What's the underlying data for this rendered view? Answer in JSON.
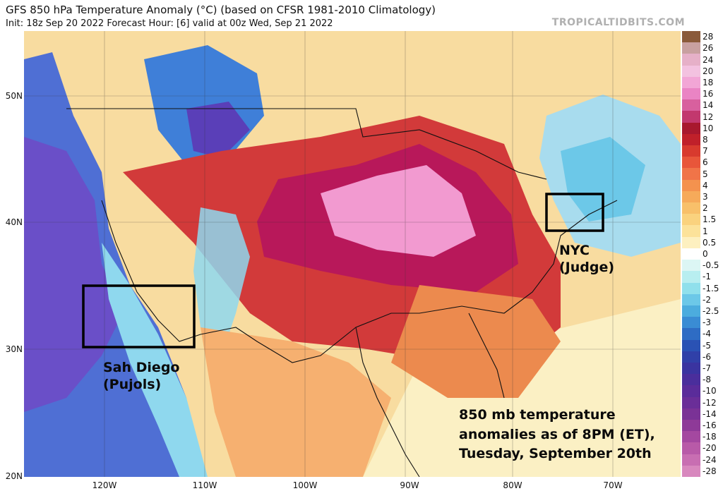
{
  "header": {
    "title": "GFS 850 hPa Temperature Anomaly (°C) (based on CFSR 1981-2010 Climatology)",
    "subtitle": "Init: 18z Sep 20 2022   Forecast Hour: [6]   valid at 00z Wed, Sep 21 2022",
    "brand": "TROPICALTIDBITS.COM"
  },
  "map": {
    "lat_labels": [
      "50N",
      "40N",
      "30N",
      "20N"
    ],
    "lon_labels": [
      "120W",
      "110W",
      "100W",
      "90W",
      "80W",
      "70W"
    ],
    "annotations": {
      "nyc_line1": "NYC",
      "nyc_line2": "(Judge)",
      "sd_line1": "Sah Diego",
      "sd_line2": "(Pujols)",
      "note_line1": "850 mb temperature",
      "note_line2": "anomalies as of 8PM (ET),",
      "note_line3": "Tuesday, September 20th"
    },
    "colors": {
      "very_cold": "#6a4fc8",
      "cold": "#3f7fd8",
      "cool": "#8fd8ee",
      "neutral": "#fbf3c8",
      "warm": "#f6c98c",
      "warmer": "#ec8a4e",
      "hot": "#d23a3a",
      "very_hot": "#b8185a",
      "extreme": "#f29ad0",
      "box": "#000000"
    }
  },
  "colorbar": {
    "ticks": [
      "28",
      "26",
      "24",
      "20",
      "18",
      "16",
      "14",
      "12",
      "10",
      "8",
      "7",
      "6",
      "5",
      "4",
      "3",
      "2",
      "1.5",
      "1",
      "0.5",
      "0",
      "-0.5",
      "-1",
      "-1.5",
      "-2",
      "-2.5",
      "-3",
      "-4",
      "-5",
      "-6",
      "-7",
      "-8",
      "-10",
      "-12",
      "-14",
      "-16",
      "-18",
      "-20",
      "-24",
      "-28"
    ],
    "colors": [
      "#8a5a3a",
      "#c8a0a0",
      "#e6b0c8",
      "#f3c2e0",
      "#f2a6d6",
      "#ea84c4",
      "#d8609e",
      "#c2386e",
      "#a8182e",
      "#c0202a",
      "#d83a2e",
      "#e8563a",
      "#f07448",
      "#f4924e",
      "#f6aa5a",
      "#f8c06a",
      "#fad27e",
      "#fce29a",
      "#fdf0c0",
      "#ffffff",
      "#dcf6f4",
      "#b8eef0",
      "#90e0ec",
      "#6cc8e8",
      "#4cacde",
      "#3a8cd4",
      "#2e6cc4",
      "#2a52b4",
      "#3040a8",
      "#3a34a0",
      "#4a2e9c",
      "#5a2c9a",
      "#6a2e98",
      "#7a3296",
      "#8e3a98",
      "#a448a0",
      "#b85aa8",
      "#c86eb2",
      "#d888be"
    ]
  }
}
